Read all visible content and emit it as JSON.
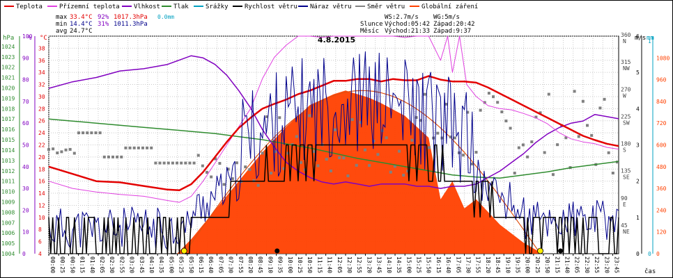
{
  "legend": [
    {
      "label": "Teplota",
      "color": "#e30000"
    },
    {
      "label": "Přízemní teplota",
      "color": "#e040e0"
    },
    {
      "label": "Vlhkost",
      "color": "#8000c0"
    },
    {
      "label": "Tlak",
      "color": "#2e8b2e"
    },
    {
      "label": "Srážky",
      "color": "#00a0c0"
    },
    {
      "label": "Rychlost větru",
      "color": "#000000"
    },
    {
      "label": "Náraz větru",
      "color": "#00008b"
    },
    {
      "label": "Směr větru",
      "color": "#808080"
    },
    {
      "label": "Globální záření",
      "color": "#ff4000"
    }
  ],
  "stats": {
    "max_label": "max",
    "max_temp": "33.4°C",
    "max_hum": "92%",
    "max_press": "1017.3hPa",
    "max_rain": "0.0mm",
    "min_label": "min",
    "min_temp": "14.4°C",
    "min_hum": "31%",
    "min_press": "1011.3hPa",
    "avg_label": "avg",
    "avg_temp": "24.7°C"
  },
  "info": {
    "ws": "WS:2.7m/s",
    "wg": "WG:5m/s",
    "sun_label": "Slunce",
    "sun_rise": "Východ:05:42",
    "sun_set": "Západ:20:42",
    "moon_label": "Měsíc",
    "moon_rise": "Východ:21:33",
    "moon_set": "Západ:9:37"
  },
  "chart_data": {
    "type": "line",
    "title": "4.8.2015",
    "xlabel": "čas",
    "x_ticks": [
      "00:00",
      "00:25",
      "00:50",
      "01:15",
      "01:40",
      "02:05",
      "02:30",
      "02:55",
      "03:20",
      "03:45",
      "04:10",
      "04:35",
      "05:00",
      "05:25",
      "05:50",
      "06:15",
      "06:40",
      "07:05",
      "07:30",
      "07:55",
      "08:20",
      "08:45",
      "09:10",
      "09:35",
      "10:00",
      "10:25",
      "10:50",
      "11:15",
      "11:40",
      "12:05",
      "12:30",
      "12:55",
      "13:20",
      "13:45",
      "14:10",
      "14:35",
      "15:00",
      "15:25",
      "15:50",
      "16:15",
      "16:40",
      "17:05",
      "17:30",
      "17:55",
      "18:20",
      "18:45",
      "19:10",
      "19:35",
      "20:00",
      "20:25",
      "20:50",
      "21:15",
      "21:40",
      "22:05",
      "22:30",
      "22:55",
      "23:20",
      "23:45"
    ],
    "axes": {
      "pressure": {
        "unit": "hPa",
        "range": [
          1004,
          1025
        ]
      },
      "humidity": {
        "unit": "%",
        "range": [
          0,
          100
        ]
      },
      "temperature": {
        "unit": "°C",
        "range": [
          4,
          40
        ]
      },
      "wind_direction": {
        "range": [
          0,
          360
        ],
        "ticks": [
          "360 N",
          "315 NW",
          "270 W",
          "225 SW",
          "180 S",
          "135 SE",
          "90 E",
          "45 NE"
        ]
      },
      "wind_speed": {
        "unit": "m/s",
        "range": [
          0,
          6
        ]
      },
      "rain": {
        "unit": "mm",
        "range": [
          0,
          1
        ]
      },
      "radiation": {
        "range": [
          0,
          1200
        ],
        "ticks": [
          120,
          240,
          360,
          480,
          600,
          720,
          840,
          960,
          1080
        ]
      }
    },
    "series": [
      {
        "name": "Teplota",
        "unit": "°C",
        "x": [
          0,
          1,
          2,
          3,
          4,
          5,
          5.5,
          6,
          6.5,
          7,
          7.5,
          8,
          8.5,
          9,
          9.5,
          10,
          10.5,
          11,
          11.5,
          12,
          12.5,
          13,
          13.5,
          14,
          14.5,
          15,
          15.5,
          16,
          16.5,
          17,
          17.5,
          18,
          18.5,
          19,
          19.5,
          20,
          20.5,
          21,
          21.5,
          22,
          22.5,
          23,
          23.5,
          24
        ],
        "y": [
          18.4,
          17.2,
          16.0,
          15.8,
          15.2,
          14.6,
          14.5,
          15.5,
          17.5,
          20.0,
          22.5,
          24.8,
          26.5,
          28.0,
          28.8,
          29.5,
          30.4,
          31.0,
          31.8,
          32.6,
          32.6,
          32.9,
          32.9,
          32.5,
          32.9,
          32.7,
          32.7,
          33.4,
          32.8,
          32.5,
          32.5,
          32.3,
          31.5,
          30.5,
          29.5,
          28.5,
          27.5,
          26.5,
          25.5,
          24.5,
          23.5,
          22.8,
          22.2,
          21.8
        ]
      },
      {
        "name": "Přízemní teplota",
        "unit": "°C",
        "x": [
          0,
          1,
          2,
          3,
          4,
          5,
          5.5,
          6,
          6.5,
          7,
          7.5,
          8,
          8.5,
          9,
          9.5,
          10,
          10.5,
          11,
          11.5,
          12,
          12.5,
          13,
          13.5,
          14,
          14.5,
          15,
          15.5,
          16,
          16.5,
          16.8,
          17,
          17.3,
          17.6,
          18,
          18.5,
          19,
          19.5,
          20,
          20.5,
          21,
          21.5,
          22,
          22.5,
          23,
          23.5,
          24
        ],
        "y": [
          16.0,
          14.8,
          14.2,
          13.8,
          13.5,
          12.8,
          12.5,
          13.5,
          16.0,
          19.0,
          22.0,
          25.0,
          28.0,
          33.0,
          36.5,
          38.5,
          40.0,
          40.0,
          39.8,
          40.0,
          40.0,
          40.0,
          40.0,
          40.0,
          40.0,
          39.8,
          40.0,
          40.0,
          36.0,
          40.0,
          34.0,
          40.0,
          32.0,
          30.0,
          28.5,
          28.0,
          27.8,
          27.2,
          26.5,
          25.5,
          24.0,
          23.0,
          22.5,
          22.2,
          21.6,
          21.3
        ]
      },
      {
        "name": "Vlhkost",
        "unit": "%",
        "x": [
          0,
          1,
          2,
          3,
          4,
          5,
          5.5,
          6,
          6.5,
          7,
          7.5,
          8,
          8.5,
          9,
          9.5,
          10,
          10.5,
          11,
          11.5,
          12,
          12.5,
          13,
          13.5,
          14,
          14.5,
          15,
          15.5,
          16,
          16.5,
          17,
          17.5,
          18,
          18.5,
          19,
          19.5,
          20,
          20.5,
          21,
          21.5,
          22,
          22.5,
          23,
          23.5,
          24
        ],
        "y": [
          76,
          79,
          81,
          84,
          85,
          87,
          89,
          91,
          90,
          87,
          82,
          75,
          67,
          57,
          49,
          42,
          38,
          35,
          33,
          32,
          33,
          32,
          31,
          32,
          32,
          32,
          31,
          31,
          30,
          31,
          31,
          32,
          35,
          38,
          42,
          46,
          51,
          55,
          58,
          60,
          61,
          64,
          63,
          62
        ]
      },
      {
        "name": "Tlak",
        "unit": "hPa",
        "x": [
          0,
          1,
          2,
          3,
          4,
          5,
          6,
          7,
          8,
          9,
          10,
          11,
          12,
          13,
          14,
          15,
          16,
          17,
          18,
          19,
          20,
          21,
          22,
          23,
          24
        ],
        "y": [
          1017.0,
          1016.8,
          1016.6,
          1016.4,
          1016.2,
          1016.0,
          1015.8,
          1015.6,
          1015.3,
          1015.0,
          1014.6,
          1014.2,
          1013.7,
          1013.2,
          1012.8,
          1012.4,
          1012.0,
          1011.6,
          1011.4,
          1011.3,
          1011.6,
          1011.9,
          1012.3,
          1012.6,
          1012.9
        ]
      },
      {
        "name": "Globální záření",
        "unit": "W/m²",
        "x": [
          5.4,
          6,
          7,
          8,
          9,
          10,
          11,
          12,
          12.5,
          13,
          13.5,
          14,
          15,
          16,
          16.5,
          17,
          17.5,
          18,
          19,
          20,
          20.8
        ],
        "y": [
          0,
          80,
          240,
          400,
          560,
          700,
          820,
          880,
          900,
          880,
          860,
          830,
          760,
          640,
          300,
          400,
          250,
          300,
          160,
          60,
          0
        ]
      }
    ],
    "annotations": [
      "sunrise marker 05:42",
      "sunset marker 20:42",
      "moonrise marker 21:33",
      "moonset marker 09:37"
    ]
  }
}
